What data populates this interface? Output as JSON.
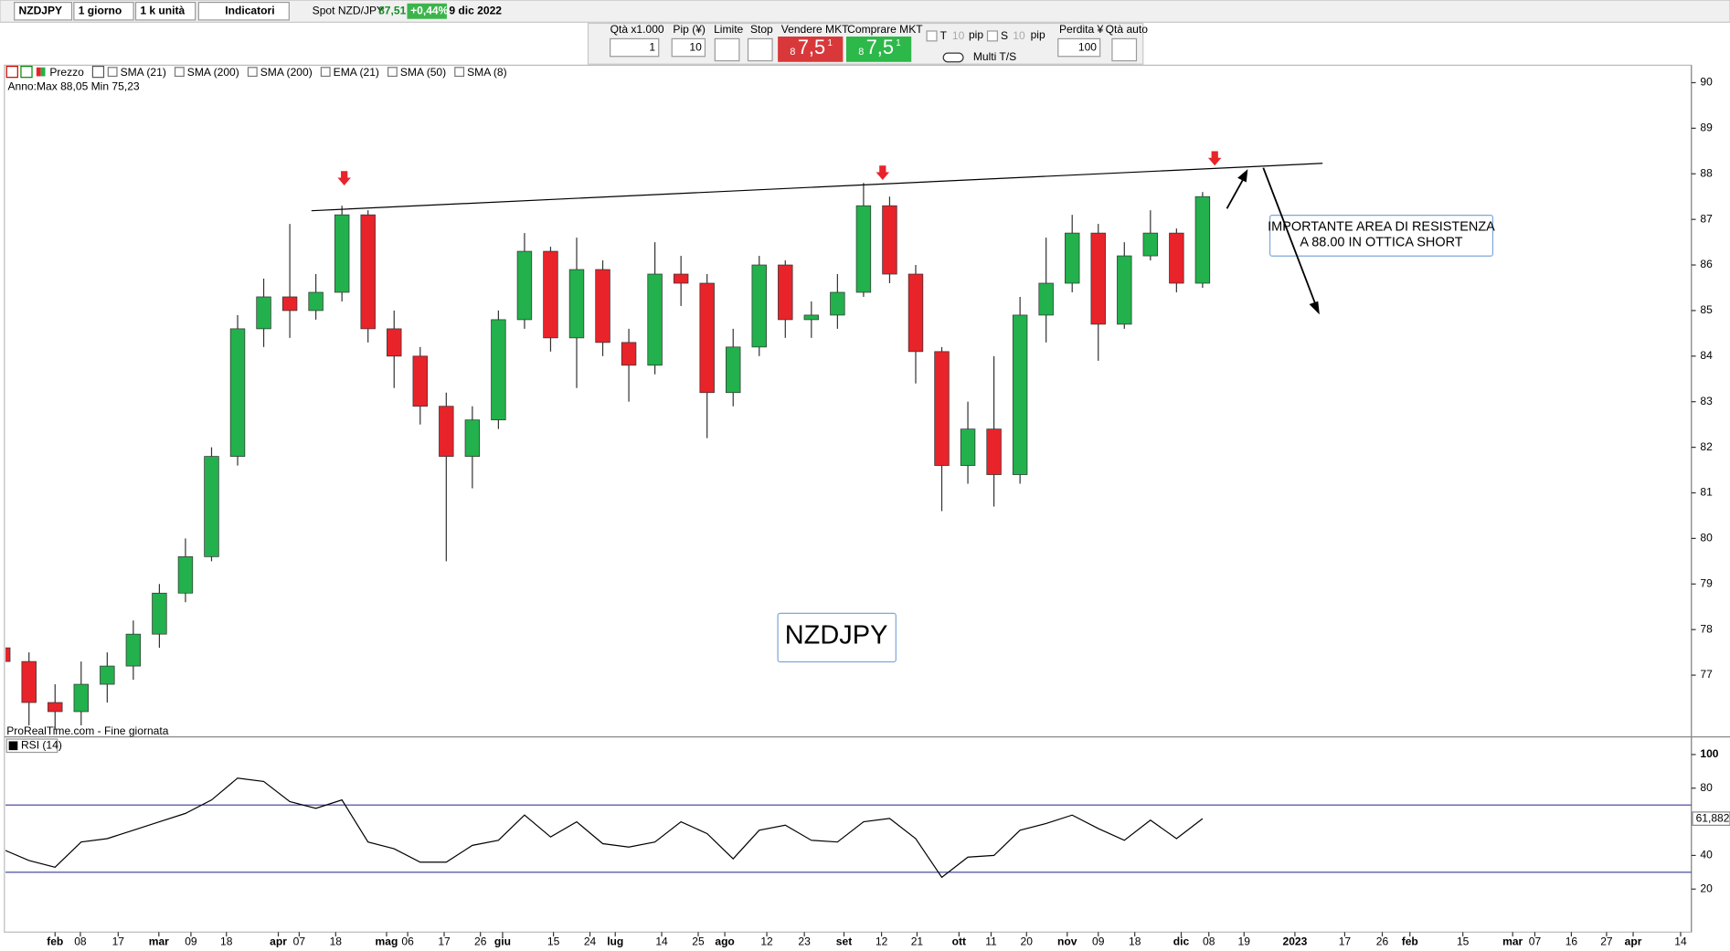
{
  "toolbar": {
    "symbol": "NZDJPY",
    "timeframe": "1 giorno",
    "units": "1 k unità",
    "indicators": "Indicatori",
    "spot": "Spot NZD/JPY",
    "price": "87,51",
    "change": "+0,44%",
    "date": "9 dic 2022",
    "qty_label": "Qtà x1.000",
    "qty": "1",
    "pip_label": "Pip (¥)",
    "pip": "10",
    "limit": "Limite",
    "stop": "Stop",
    "sell_label": "Vendere MKT",
    "sell_small": "8",
    "sell_big": "7,5",
    "sell_sup": "1",
    "buy_label": "Comprare MKT",
    "buy_small": "8",
    "buy_big": "7,5",
    "buy_sup": "1",
    "t_label": "T",
    "t_value": "10",
    "t_unit": "pip",
    "s_label": "S",
    "s_value": "10",
    "s_unit": "pip",
    "multi": "Multi T/S",
    "loss_label": "Perdita ¥",
    "loss": "100",
    "auto_qty": "Qtà auto"
  },
  "chart_data": [
    {
      "type": "candlestick",
      "watermark": "NZDJPY",
      "info": "Anno:Max 88,05 Min 75,23",
      "source": "ProRealTime.com - Fine giornata",
      "legend": [
        "Prezzo",
        "SMA (21)",
        "SMA (200)",
        "SMA (200)",
        "EMA (21)",
        "SMA (50)",
        "SMA (8)"
      ],
      "annotation": [
        "IMPORTANTE AREA DI RESISTENZA",
        "A 88.00 IN OTTICA SHORT"
      ],
      "up_color": "#22b14c",
      "down_color": "#e8232a",
      "x": [
        -2,
        -1,
        0,
        1,
        2,
        3,
        4,
        5,
        6,
        7,
        8,
        9,
        10,
        11,
        12,
        13,
        14,
        15,
        16,
        17,
        18,
        19,
        20,
        21,
        22,
        23,
        24,
        25,
        26,
        27,
        28,
        29,
        30,
        31,
        32,
        33,
        34,
        35,
        36,
        37,
        38,
        39,
        40,
        41,
        42,
        43,
        44
      ],
      "open": [
        77.6,
        77.3,
        76.4,
        76.2,
        76.8,
        77.2,
        77.9,
        78.8,
        79.6,
        81.8,
        84.6,
        85.3,
        85.0,
        85.4,
        87.1,
        84.6,
        84.0,
        82.9,
        81.8,
        82.6,
        84.8,
        86.3,
        84.4,
        85.9,
        84.3,
        83.8,
        85.8,
        85.6,
        83.2,
        84.2,
        86.0,
        84.8,
        84.9,
        85.4,
        87.3,
        85.8,
        84.1,
        81.6,
        82.4,
        81.4,
        84.9,
        85.6,
        86.7,
        84.7,
        86.2,
        86.7,
        85.6
      ],
      "high": [
        77.9,
        77.5,
        76.8,
        77.3,
        77.5,
        78.2,
        79.0,
        80.0,
        82.0,
        84.9,
        85.7,
        86.9,
        85.8,
        87.3,
        87.2,
        85.0,
        84.2,
        83.2,
        82.9,
        85.0,
        86.7,
        86.4,
        86.6,
        86.1,
        84.6,
        86.5,
        86.2,
        85.8,
        84.6,
        86.2,
        86.1,
        85.2,
        85.8,
        87.8,
        87.5,
        86.0,
        84.2,
        83.0,
        84.0,
        85.3,
        86.6,
        87.1,
        86.9,
        86.5,
        87.2,
        86.8,
        87.6
      ],
      "low": [
        76.9,
        75.9,
        75.8,
        75.9,
        76.4,
        76.9,
        77.6,
        78.6,
        79.5,
        81.6,
        84.2,
        84.4,
        84.8,
        85.2,
        84.3,
        83.3,
        82.5,
        79.5,
        81.1,
        82.4,
        84.6,
        84.1,
        83.3,
        84.0,
        83.0,
        83.6,
        85.1,
        82.2,
        82.9,
        84.0,
        84.4,
        84.4,
        84.6,
        85.3,
        85.6,
        83.4,
        80.6,
        81.2,
        80.7,
        81.2,
        84.3,
        85.4,
        83.9,
        84.6,
        86.1,
        85.4,
        85.5
      ],
      "close": [
        77.3,
        76.4,
        76.2,
        76.8,
        77.2,
        77.9,
        78.8,
        79.6,
        81.8,
        84.6,
        85.3,
        85.0,
        85.4,
        87.1,
        84.6,
        84.0,
        82.9,
        81.8,
        82.6,
        84.8,
        86.3,
        84.4,
        85.9,
        84.3,
        83.8,
        85.8,
        85.6,
        83.2,
        84.2,
        86.0,
        84.8,
        84.9,
        85.4,
        87.3,
        85.8,
        84.1,
        81.6,
        82.4,
        81.4,
        84.9,
        85.6,
        86.7,
        84.7,
        86.2,
        86.7,
        85.6,
        87.5
      ],
      "trendline": {
        "x": [
          9.83,
          48.6
        ],
        "y": [
          87.19,
          88.23
        ]
      },
      "ylim": [
        75.67,
        90.31
      ],
      "yticks": [
        77,
        78,
        79,
        80,
        81,
        82,
        83,
        84,
        85,
        86,
        87,
        88,
        89,
        90
      ],
      "xlim": [
        -1.9,
        62.7
      ],
      "xticks": [
        {
          "value": 0,
          "label": "feb"
        },
        {
          "value": 0.97,
          "label": "08"
        },
        {
          "value": 2.42,
          "label": "17"
        },
        {
          "value": 3.98,
          "label": "mar"
        },
        {
          "value": 5.21,
          "label": "09"
        },
        {
          "value": 6.57,
          "label": "18"
        },
        {
          "value": 8.56,
          "label": "apr"
        },
        {
          "value": 9.36,
          "label": "07"
        },
        {
          "value": 10.76,
          "label": "18"
        },
        {
          "value": 12.71,
          "label": "mag"
        },
        {
          "value": 13.52,
          "label": "06"
        },
        {
          "value": 14.92,
          "label": "17"
        },
        {
          "value": 16.31,
          "label": "26"
        },
        {
          "value": 17.16,
          "label": "giu"
        },
        {
          "value": 19.11,
          "label": "15"
        },
        {
          "value": 20.51,
          "label": "24"
        },
        {
          "value": 21.48,
          "label": "lug"
        },
        {
          "value": 23.26,
          "label": "14"
        },
        {
          "value": 24.66,
          "label": "25"
        },
        {
          "value": 25.68,
          "label": "ago"
        },
        {
          "value": 27.29,
          "label": "12"
        },
        {
          "value": 28.73,
          "label": "23"
        },
        {
          "value": 30.25,
          "label": "set"
        },
        {
          "value": 31.69,
          "label": "12"
        },
        {
          "value": 33.05,
          "label": "21"
        },
        {
          "value": 34.66,
          "label": "ott"
        },
        {
          "value": 35.89,
          "label": "11"
        },
        {
          "value": 37.25,
          "label": "20"
        },
        {
          "value": 38.81,
          "label": "nov"
        },
        {
          "value": 40,
          "label": "09"
        },
        {
          "value": 41.4,
          "label": "18"
        },
        {
          "value": 43.18,
          "label": "dic"
        },
        {
          "value": 44.24,
          "label": "08"
        },
        {
          "value": 45.59,
          "label": "19"
        },
        {
          "value": 47.54,
          "label": "2023"
        },
        {
          "value": 49.45,
          "label": "17"
        },
        {
          "value": 50.89,
          "label": "26"
        },
        {
          "value": 51.95,
          "label": "feb"
        },
        {
          "value": 53.98,
          "label": "15"
        },
        {
          "value": 55.89,
          "label": "mar"
        },
        {
          "value": 56.74,
          "label": "07"
        },
        {
          "value": 58.14,
          "label": "16"
        },
        {
          "value": 59.49,
          "label": "27"
        },
        {
          "value": 60.51,
          "label": "apr"
        },
        {
          "value": 62.33,
          "label": "14"
        }
      ]
    },
    {
      "type": "line",
      "name": "RSI (14)",
      "color": "#000000",
      "level_color": "#3a3a9a",
      "levels": [
        30,
        70
      ],
      "x": [
        -2,
        -1,
        0,
        1,
        2,
        3,
        4,
        5,
        6,
        7,
        8,
        9,
        10,
        11,
        12,
        13,
        14,
        15,
        16,
        17,
        18,
        19,
        20,
        21,
        22,
        23,
        24,
        25,
        26,
        27,
        28,
        29,
        30,
        31,
        32,
        33,
        34,
        35,
        36,
        37,
        38,
        39,
        40,
        41,
        42,
        43,
        44
      ],
      "values": [
        43.6,
        37,
        33,
        48,
        50,
        55,
        60,
        65,
        73,
        86,
        84,
        72,
        68,
        73,
        48,
        44,
        36,
        36,
        46,
        49,
        64,
        51,
        60,
        47,
        45,
        48,
        60,
        53,
        38,
        55,
        58,
        49,
        48,
        60,
        62,
        50,
        27,
        39,
        40,
        55,
        59,
        64,
        56,
        49,
        61,
        50,
        61.882
      ],
      "last_label": {
        "value": 61.882,
        "label": "61,882"
      },
      "ylim": [
        -5.57,
        109.18
      ],
      "yticks": [
        20,
        40,
        80,
        100
      ],
      "xlim": [
        -1.9,
        62.7
      ]
    }
  ]
}
